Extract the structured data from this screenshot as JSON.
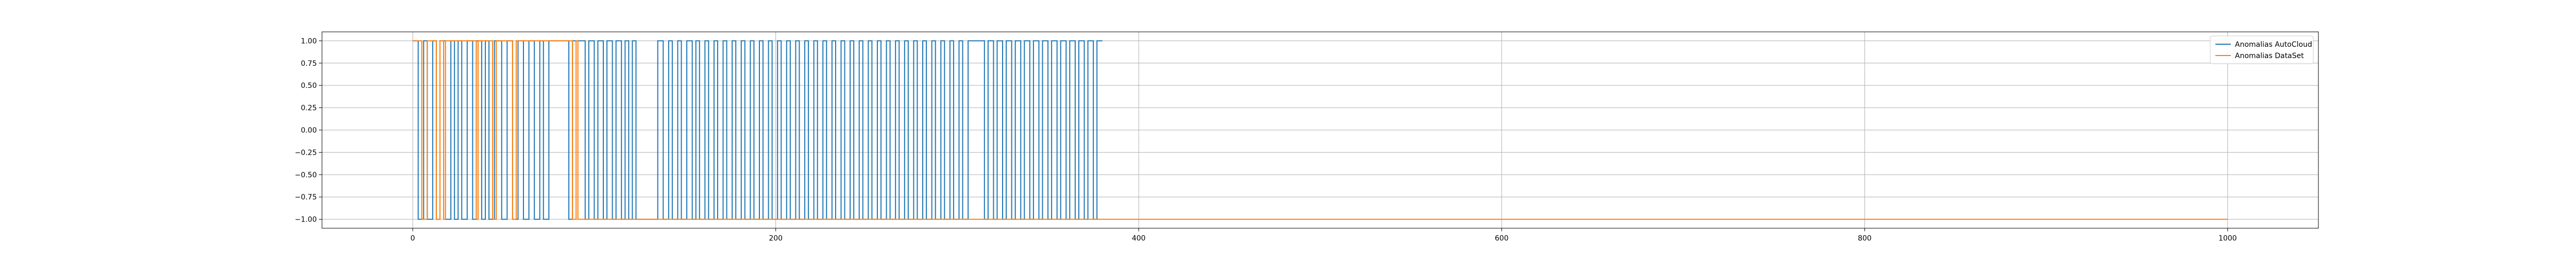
{
  "chart_data": {
    "type": "line",
    "title": "",
    "xlabel": "",
    "ylabel": "",
    "xlim": [
      -50,
      1050
    ],
    "ylim": [
      -1.1,
      1.1
    ],
    "grid": true,
    "legend_position": "upper-right",
    "x_ticks": [
      0,
      200,
      400,
      600,
      800,
      1000
    ],
    "x_tick_labels": [
      "0",
      "200",
      "400",
      "600",
      "800",
      "1000"
    ],
    "y_ticks": [
      1.0,
      0.75,
      0.5,
      0.25,
      0.0,
      -0.25,
      -0.5,
      -0.75,
      -1.0
    ],
    "y_tick_labels": [
      "1.00",
      "0.75",
      "0.50",
      "0.25",
      "0.00",
      "−0.25",
      "−0.50",
      "−0.75",
      "−1.00"
    ],
    "series": [
      {
        "name": "Anomalias AutoCloud",
        "color": "#1f77b4",
        "x_end": 380,
        "segments": [
          [
            0,
            1
          ],
          [
            3,
            -1
          ],
          [
            6,
            1
          ],
          [
            8,
            -1
          ],
          [
            11,
            1
          ],
          [
            13,
            -1
          ],
          [
            15,
            1
          ],
          [
            18,
            -1
          ],
          [
            21,
            1
          ],
          [
            23,
            -1
          ],
          [
            25,
            1
          ],
          [
            27,
            -1
          ],
          [
            30,
            1
          ],
          [
            33,
            -1
          ],
          [
            35,
            1
          ],
          [
            38,
            -1
          ],
          [
            40,
            1
          ],
          [
            42,
            -1
          ],
          [
            45,
            1
          ],
          [
            49,
            -1
          ],
          [
            52,
            1
          ],
          [
            55,
            -1
          ],
          [
            58,
            1
          ],
          [
            61,
            -1
          ],
          [
            64,
            1
          ],
          [
            67,
            -1
          ],
          [
            70,
            1
          ],
          [
            72,
            -1
          ],
          [
            75,
            1
          ],
          [
            86,
            -1
          ],
          [
            88,
            1
          ],
          [
            95,
            -1
          ],
          [
            97,
            1
          ],
          [
            100,
            -1
          ],
          [
            102,
            1
          ],
          [
            105,
            -1
          ],
          [
            107,
            1
          ],
          [
            110,
            -1
          ],
          [
            112,
            1
          ],
          [
            115,
            -1
          ],
          [
            117,
            1
          ],
          [
            119,
            -1
          ],
          [
            121,
            1
          ],
          [
            123,
            -1
          ],
          [
            135,
            1
          ],
          [
            138,
            -1
          ],
          [
            141,
            1
          ],
          [
            143,
            -1
          ],
          [
            146,
            1
          ],
          [
            148,
            -1
          ],
          [
            151,
            1
          ],
          [
            154,
            -1
          ],
          [
            156,
            1
          ],
          [
            158,
            -1
          ],
          [
            161,
            1
          ],
          [
            163,
            -1
          ],
          [
            166,
            1
          ],
          [
            168,
            -1
          ],
          [
            171,
            1
          ],
          [
            173,
            -1
          ],
          [
            176,
            1
          ],
          [
            178,
            -1
          ],
          [
            181,
            1
          ],
          [
            183,
            -1
          ],
          [
            186,
            1
          ],
          [
            188,
            -1
          ],
          [
            191,
            1
          ],
          [
            193,
            -1
          ],
          [
            196,
            1
          ],
          [
            198,
            -1
          ],
          [
            201,
            1
          ],
          [
            203,
            -1
          ],
          [
            206,
            1
          ],
          [
            208,
            -1
          ],
          [
            211,
            1
          ],
          [
            213,
            -1
          ],
          [
            216,
            1
          ],
          [
            218,
            -1
          ],
          [
            221,
            1
          ],
          [
            223,
            -1
          ],
          [
            226,
            1
          ],
          [
            228,
            -1
          ],
          [
            231,
            1
          ],
          [
            233,
            -1
          ],
          [
            236,
            1
          ],
          [
            238,
            -1
          ],
          [
            241,
            1
          ],
          [
            243,
            -1
          ],
          [
            246,
            1
          ],
          [
            248,
            -1
          ],
          [
            251,
            1
          ],
          [
            253,
            -1
          ],
          [
            256,
            1
          ],
          [
            258,
            -1
          ],
          [
            261,
            1
          ],
          [
            263,
            -1
          ],
          [
            266,
            1
          ],
          [
            268,
            -1
          ],
          [
            271,
            1
          ],
          [
            273,
            -1
          ],
          [
            276,
            1
          ],
          [
            278,
            -1
          ],
          [
            281,
            1
          ],
          [
            283,
            -1
          ],
          [
            286,
            1
          ],
          [
            288,
            -1
          ],
          [
            291,
            1
          ],
          [
            293,
            -1
          ],
          [
            296,
            1
          ],
          [
            298,
            -1
          ],
          [
            301,
            1
          ],
          [
            303,
            -1
          ],
          [
            306,
            1
          ],
          [
            315,
            -1
          ],
          [
            317,
            1
          ],
          [
            320,
            -1
          ],
          [
            322,
            1
          ],
          [
            325,
            -1
          ],
          [
            327,
            1
          ],
          [
            330,
            -1
          ],
          [
            332,
            1
          ],
          [
            335,
            -1
          ],
          [
            337,
            1
          ],
          [
            340,
            -1
          ],
          [
            342,
            1
          ],
          [
            345,
            -1
          ],
          [
            347,
            1
          ],
          [
            350,
            -1
          ],
          [
            352,
            1
          ],
          [
            355,
            -1
          ],
          [
            357,
            1
          ],
          [
            360,
            -1
          ],
          [
            362,
            1
          ],
          [
            365,
            -1
          ],
          [
            367,
            1
          ],
          [
            370,
            -1
          ],
          [
            372,
            1
          ],
          [
            375,
            -1
          ],
          [
            377,
            1
          ],
          [
            380,
            1
          ]
        ]
      },
      {
        "name": "Anomalias DataSet",
        "color": "#ff7f0e",
        "x_end": 1000,
        "segments": [
          [
            0,
            1
          ],
          [
            5,
            -1
          ],
          [
            8,
            1
          ],
          [
            13,
            -1
          ],
          [
            15,
            1
          ],
          [
            17,
            -1
          ],
          [
            18,
            1
          ],
          [
            35,
            -1
          ],
          [
            36,
            1
          ],
          [
            44,
            -1
          ],
          [
            46,
            1
          ],
          [
            55,
            -1
          ],
          [
            57,
            1
          ],
          [
            88,
            -1
          ],
          [
            90,
            1
          ],
          [
            91,
            -1
          ],
          [
            1000,
            -1
          ]
        ]
      }
    ]
  }
}
